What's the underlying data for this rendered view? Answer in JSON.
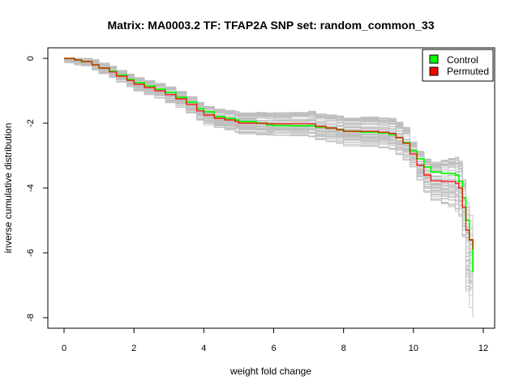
{
  "chart_data": {
    "type": "line",
    "title": "Matrix: MA0003.2 TF: TFAP2A SNP set: random_common_33",
    "xlabel": "weight fold change",
    "ylabel": "inverse cumulative distribution",
    "xlim": [
      0,
      12
    ],
    "ylim": [
      -8,
      0
    ],
    "xticks": [
      "0",
      "2",
      "4",
      "6",
      "8",
      "10",
      "12"
    ],
    "yticks": [
      "0",
      "-2",
      "-4",
      "-6",
      "-8"
    ],
    "grid": false,
    "legend_position": "top-right",
    "series": [
      {
        "name": "Control",
        "color": "#00ff00",
        "x": [
          0,
          0.2,
          0.3,
          0.5,
          0.8,
          1.0,
          1.3,
          1.5,
          1.8,
          2.0,
          2.3,
          2.6,
          2.9,
          3.2,
          3.5,
          3.8,
          4.0,
          4.3,
          4.6,
          4.9,
          5.0,
          5.5,
          5.8,
          6.0,
          6.5,
          7.0,
          7.2,
          7.5,
          7.8,
          8.0,
          8.5,
          9.0,
          9.3,
          9.5,
          9.7,
          9.9,
          10.1,
          10.3,
          10.5,
          10.8,
          11.0,
          11.2,
          11.3,
          11.4,
          11.5,
          11.6,
          11.7
        ],
        "values": [
          0,
          0,
          -0.05,
          -0.1,
          -0.2,
          -0.3,
          -0.4,
          -0.52,
          -0.65,
          -0.75,
          -0.85,
          -0.95,
          -1.05,
          -1.2,
          -1.35,
          -1.55,
          -1.65,
          -1.8,
          -1.85,
          -1.9,
          -1.95,
          -2.0,
          -2.05,
          -2.08,
          -2.08,
          -2.08,
          -2.12,
          -2.15,
          -2.2,
          -2.25,
          -2.28,
          -2.3,
          -2.35,
          -2.45,
          -2.6,
          -2.85,
          -3.1,
          -3.35,
          -3.5,
          -3.55,
          -3.55,
          -3.6,
          -3.8,
          -4.3,
          -5.0,
          -5.6,
          -6.6
        ]
      },
      {
        "name": "Permuted",
        "color": "#ff0000",
        "x": [
          0,
          0.2,
          0.3,
          0.5,
          0.8,
          1.0,
          1.3,
          1.5,
          1.8,
          2.0,
          2.3,
          2.6,
          2.9,
          3.2,
          3.5,
          3.8,
          4.0,
          4.3,
          4.6,
          4.9,
          5.0,
          5.5,
          5.8,
          6.0,
          6.5,
          7.0,
          7.2,
          7.5,
          7.8,
          8.0,
          8.5,
          9.0,
          9.3,
          9.5,
          9.7,
          9.9,
          10.1,
          10.3,
          10.5,
          10.8,
          11.0,
          11.2,
          11.3,
          11.4,
          11.5,
          11.6,
          11.7
        ],
        "values": [
          0,
          0,
          -0.05,
          -0.1,
          -0.2,
          -0.3,
          -0.42,
          -0.55,
          -0.68,
          -0.8,
          -0.9,
          -1.0,
          -1.12,
          -1.25,
          -1.42,
          -1.62,
          -1.75,
          -1.85,
          -1.9,
          -1.95,
          -2.0,
          -2.0,
          -2.02,
          -2.02,
          -2.02,
          -2.02,
          -2.1,
          -2.15,
          -2.2,
          -2.25,
          -2.25,
          -2.28,
          -2.32,
          -2.45,
          -2.62,
          -2.95,
          -3.3,
          -3.6,
          -3.78,
          -3.8,
          -3.8,
          -3.85,
          -4.0,
          -4.6,
          -5.3,
          -5.6,
          -5.9
        ]
      }
    ]
  }
}
